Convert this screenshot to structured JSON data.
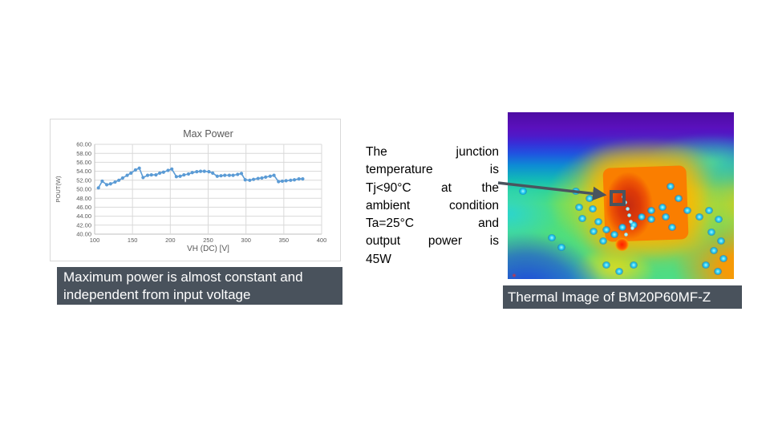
{
  "chart_data": {
    "type": "line",
    "title": "Max Power",
    "xlabel": "VH (DC) [V]",
    "ylabel": "POUT(W)",
    "xlim": [
      100,
      400
    ],
    "ylim": [
      40,
      60
    ],
    "xticks": [
      100,
      150,
      200,
      250,
      300,
      350,
      400
    ],
    "yticks": [
      40,
      42,
      44,
      46,
      48,
      50,
      52,
      54,
      56,
      58,
      60
    ],
    "ytick_format": "two_decimals",
    "grid": true,
    "legend": "none",
    "series": [
      {
        "name": "Max Power",
        "color": "#5B9BD5",
        "points": [
          [
            105,
            50.3
          ],
          [
            110,
            51.8
          ],
          [
            116,
            51.0
          ],
          [
            121,
            51.2
          ],
          [
            127,
            51.6
          ],
          [
            132,
            52.0
          ],
          [
            137,
            52.5
          ],
          [
            143,
            53.1
          ],
          [
            148,
            53.6
          ],
          [
            154,
            54.3
          ],
          [
            159,
            54.7
          ],
          [
            164,
            52.6
          ],
          [
            170,
            53.1
          ],
          [
            175,
            53.2
          ],
          [
            181,
            53.2
          ],
          [
            186,
            53.6
          ],
          [
            191,
            53.8
          ],
          [
            197,
            54.2
          ],
          [
            202,
            54.5
          ],
          [
            208,
            52.8
          ],
          [
            213,
            52.9
          ],
          [
            218,
            53.2
          ],
          [
            224,
            53.4
          ],
          [
            229,
            53.7
          ],
          [
            235,
            53.9
          ],
          [
            240,
            54.0
          ],
          [
            245,
            54.0
          ],
          [
            251,
            53.9
          ],
          [
            256,
            53.6
          ],
          [
            262,
            52.9
          ],
          [
            267,
            53.0
          ],
          [
            272,
            53.1
          ],
          [
            278,
            53.1
          ],
          [
            283,
            53.1
          ],
          [
            289,
            53.3
          ],
          [
            294,
            53.5
          ],
          [
            299,
            52.1
          ],
          [
            305,
            52.0
          ],
          [
            310,
            52.2
          ],
          [
            316,
            52.4
          ],
          [
            321,
            52.5
          ],
          [
            326,
            52.7
          ],
          [
            332,
            52.9
          ],
          [
            337,
            53.1
          ],
          [
            343,
            51.7
          ],
          [
            348,
            51.8
          ],
          [
            353,
            51.9
          ],
          [
            359,
            52.0
          ],
          [
            364,
            52.1
          ],
          [
            370,
            52.3
          ],
          [
            375,
            52.3
          ]
        ]
      }
    ],
    "text_color": "#595959",
    "grid_color": "#d9d9d9",
    "axis_color": "#bfbfbf"
  },
  "chart_caption": {
    "text": "Maximum power is almost constant and independent from input voltage",
    "bg": "#49525c",
    "color": "#ffffff"
  },
  "annotation": {
    "full_text": "The junction temperature is Tj<90°C at the ambient condition Ta=25°C and output power is 45W",
    "lines": [
      "The junction",
      "temperature is",
      "Tj<90°C at the",
      "ambient condition",
      "Ta=25°C and",
      "output power is",
      "45W"
    ],
    "color": "#000000"
  },
  "thermal": {
    "caption": "Thermal Image of BM20P60MF-Z",
    "caption_bg": "#49525c",
    "caption_color": "#ffffff",
    "marker_meaning": "junction hot spot",
    "arrow_color": "#4a545e"
  }
}
